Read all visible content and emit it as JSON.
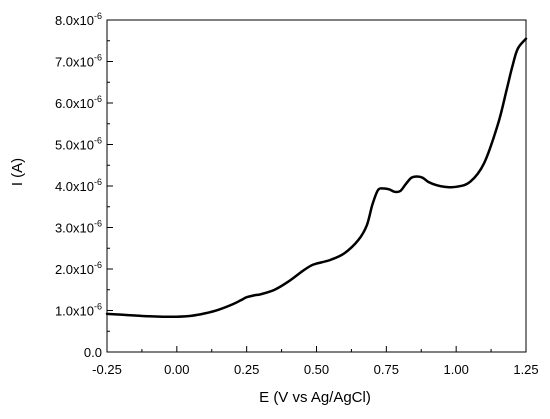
{
  "chart_data": {
    "type": "line",
    "title": "",
    "xlabel": "E (V vs Ag/AgCl)",
    "ylabel": "I (A)",
    "xlim": [
      -0.25,
      1.25
    ],
    "ylim": [
      0,
      8e-06
    ],
    "grid": false,
    "legend": "none",
    "line_color": "#000000",
    "x_ticks": [
      {
        "value": -0.25,
        "label": "-0.25"
      },
      {
        "value": 0.0,
        "label": "0.00"
      },
      {
        "value": 0.25,
        "label": "0.25"
      },
      {
        "value": 0.5,
        "label": "0.50"
      },
      {
        "value": 0.75,
        "label": "0.75"
      },
      {
        "value": 1.0,
        "label": "1.00"
      },
      {
        "value": 1.25,
        "label": "1.25"
      }
    ],
    "y_ticks": [
      {
        "value": 0,
        "mantissa": "0.0",
        "exponent": ""
      },
      {
        "value": 1e-06,
        "mantissa": "1.0x10",
        "exponent": "-6"
      },
      {
        "value": 2e-06,
        "mantissa": "2.0x10",
        "exponent": "-6"
      },
      {
        "value": 3e-06,
        "mantissa": "3.0x10",
        "exponent": "-6"
      },
      {
        "value": 4e-06,
        "mantissa": "4.0x10",
        "exponent": "-6"
      },
      {
        "value": 5e-06,
        "mantissa": "5.0x10",
        "exponent": "-6"
      },
      {
        "value": 6e-06,
        "mantissa": "6.0x10",
        "exponent": "-6"
      },
      {
        "value": 7e-06,
        "mantissa": "7.0x10",
        "exponent": "-6"
      },
      {
        "value": 8e-06,
        "mantissa": "8.0x10",
        "exponent": "-6"
      }
    ],
    "series": [
      {
        "x": [
          -0.25,
          -0.2,
          -0.15,
          -0.1,
          -0.05,
          0.0,
          0.05,
          0.1,
          0.15,
          0.2,
          0.23,
          0.25,
          0.28,
          0.3,
          0.35,
          0.4,
          0.45,
          0.48,
          0.5,
          0.55,
          0.6,
          0.65,
          0.68,
          0.7,
          0.72,
          0.74,
          0.76,
          0.78,
          0.8,
          0.82,
          0.84,
          0.86,
          0.88,
          0.9,
          0.93,
          0.96,
          1.0,
          1.05,
          1.1,
          1.15,
          1.18,
          1.2,
          1.22,
          1.25
        ],
        "y": [
          9.2e-07,
          9e-07,
          8.8e-07,
          8.6e-07,
          8.5e-07,
          8.5e-07,
          8.7e-07,
          9.3e-07,
          1.02e-06,
          1.15e-06,
          1.25e-06,
          1.32e-06,
          1.37e-06,
          1.39e-06,
          1.5e-06,
          1.7e-06,
          1.95e-06,
          2.08e-06,
          2.13e-06,
          2.22e-06,
          2.38e-06,
          2.7e-06,
          3.05e-06,
          3.55e-06,
          3.9e-06,
          3.94e-06,
          3.92e-06,
          3.86e-06,
          3.88e-06,
          4.05e-06,
          4.2e-06,
          4.23e-06,
          4.2e-06,
          4.1e-06,
          4.02e-06,
          3.98e-06,
          3.98e-06,
          4.1e-06,
          4.55e-06,
          5.5e-06,
          6.3e-06,
          6.85e-06,
          7.3e-06,
          7.55e-06
        ]
      }
    ]
  }
}
